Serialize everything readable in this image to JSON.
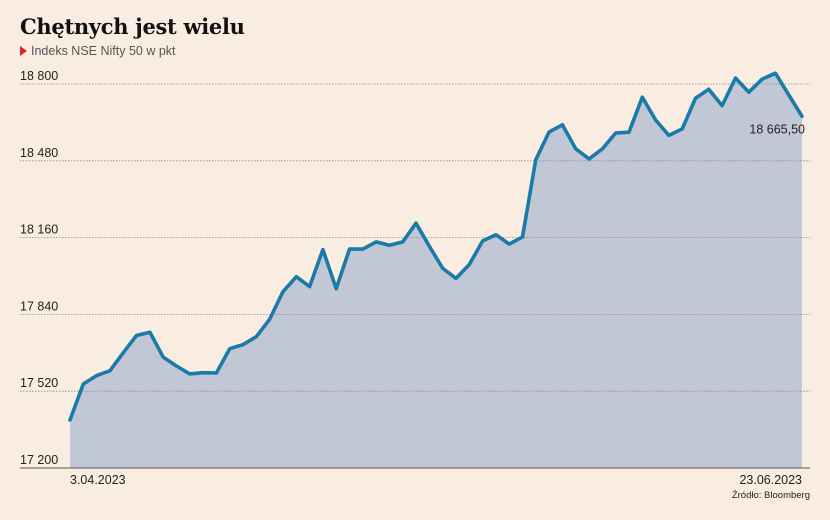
{
  "header": {
    "title": "Chętnych jest wielu",
    "subtitle": "Indeks NSE Nifty 50 w pkt"
  },
  "source": "Źródło: Bloomberg",
  "colors": {
    "background": "#f9ede1",
    "line": "#1a7ba8",
    "area": "#c2c7d6",
    "marker": "#d9261c"
  },
  "chart_data": {
    "type": "area",
    "ylim": [
      17200,
      18800
    ],
    "yticks": [
      17200,
      17520,
      17840,
      18160,
      18480,
      18800
    ],
    "ytick_labels": [
      "17 200",
      "17 520",
      "17 840",
      "18 160",
      "18 480",
      "18 800"
    ],
    "x_start_label": "3.04.2023",
    "x_end_label": "23.06.2023",
    "last_value_label": "18 665,50",
    "grid": true,
    "values": [
      17400,
      17550,
      17585,
      17605,
      17680,
      17752,
      17766,
      17662,
      17625,
      17592,
      17597,
      17596,
      17697,
      17714,
      17747,
      17819,
      17934,
      17997,
      17956,
      18110,
      17947,
      18112,
      18112,
      18142,
      18128,
      18142,
      18220,
      18124,
      18032,
      17990,
      18048,
      18146,
      18172,
      18133,
      18163,
      18485,
      18600,
      18630,
      18530,
      18488,
      18530,
      18596,
      18599,
      18745,
      18650,
      18586,
      18613,
      18741,
      18778,
      18710,
      18825,
      18766,
      18820,
      18845,
      18755,
      18665.5
    ]
  }
}
